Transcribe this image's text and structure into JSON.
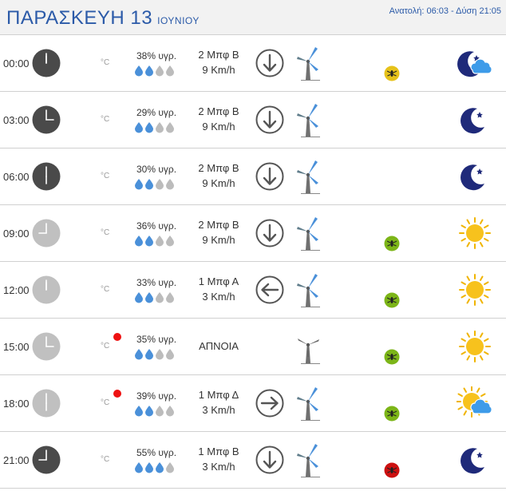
{
  "header": {
    "day": "ΠΑΡΑΣΚΕΥΗ 13",
    "month": "ΙΟΥΝΙΟΥ",
    "sun_times": "Ανατολή: 06:03 - Δύση 21:05"
  },
  "colors": {
    "accent": "#2b5aa8",
    "night_clock": "#4a4a4a",
    "day_clock": "#c0c0c0",
    "drop_filled": "#4a90d9",
    "drop_empty": "#bcbcbc",
    "uv_low": "#e6c21a",
    "uv_mid": "#7cb518",
    "uv_high": "#cc1111",
    "alert": "#ee1111"
  },
  "rows": [
    {
      "time": "00:00",
      "clock": "night",
      "temp": "°C",
      "alert": false,
      "humidity": "38% υγρ.",
      "drops_filled": 2,
      "wind_line1": "2 Μπφ Β",
      "wind_line2": "9 Km/h",
      "direction": "down",
      "turbine": "normal",
      "uv": "uv-low",
      "weather": "moon-cloud"
    },
    {
      "time": "03:00",
      "clock": "night",
      "temp": "°C",
      "alert": false,
      "humidity": "29% υγρ.",
      "drops_filled": 2,
      "wind_line1": "2 Μπφ Β",
      "wind_line2": "9 Km/h",
      "direction": "down",
      "turbine": "normal",
      "uv": "none",
      "weather": "moon"
    },
    {
      "time": "06:00",
      "clock": "night",
      "temp": "°C",
      "alert": false,
      "humidity": "30% υγρ.",
      "drops_filled": 2,
      "wind_line1": "2 Μπφ Β",
      "wind_line2": "9 Km/h",
      "direction": "down",
      "turbine": "normal",
      "uv": "none",
      "weather": "moon"
    },
    {
      "time": "09:00",
      "clock": "day",
      "temp": "°C",
      "alert": false,
      "humidity": "36% υγρ.",
      "drops_filled": 2,
      "wind_line1": "2 Μπφ Β",
      "wind_line2": "9 Km/h",
      "direction": "down",
      "turbine": "normal",
      "uv": "uv-mid",
      "weather": "sun"
    },
    {
      "time": "12:00",
      "clock": "day",
      "temp": "°C",
      "alert": false,
      "humidity": "33% υγρ.",
      "drops_filled": 2,
      "wind_line1": "1 Μπφ Α",
      "wind_line2": "3 Km/h",
      "direction": "left",
      "turbine": "normal",
      "uv": "uv-mid",
      "weather": "sun"
    },
    {
      "time": "15:00",
      "clock": "day",
      "temp": "°C",
      "alert": true,
      "humidity": "35% υγρ.",
      "drops_filled": 2,
      "wind_line1": "ΑΠΝΟΙΑ",
      "wind_line2": "",
      "direction": "none",
      "turbine": "calm",
      "uv": "uv-mid",
      "weather": "sun"
    },
    {
      "time": "18:00",
      "clock": "day",
      "temp": "°C",
      "alert": true,
      "humidity": "39% υγρ.",
      "drops_filled": 2,
      "wind_line1": "1 Μπφ Δ",
      "wind_line2": "3 Km/h",
      "direction": "right",
      "turbine": "normal",
      "uv": "uv-mid",
      "weather": "sun-cloud"
    },
    {
      "time": "21:00",
      "clock": "night",
      "temp": "°C",
      "alert": false,
      "humidity": "55% υγρ.",
      "drops_filled": 3,
      "wind_line1": "1 Μπφ Β",
      "wind_line2": "3 Km/h",
      "direction": "down",
      "turbine": "normal",
      "uv": "uv-high",
      "weather": "moon"
    }
  ]
}
